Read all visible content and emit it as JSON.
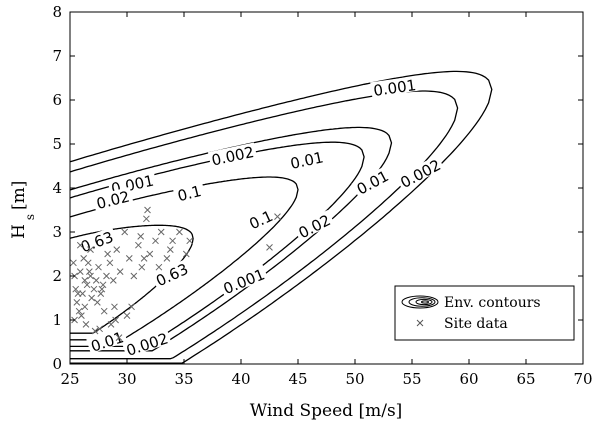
{
  "chart_data": {
    "type": "contour",
    "xlabel": "Wind Speed [m/s]",
    "ylabel_main": "H",
    "ylabel_sub": "s",
    "ylabel_unit": "[m]",
    "xlim": [
      25,
      70
    ],
    "ylim": [
      0,
      8
    ],
    "xticks": [
      "25",
      "30",
      "35",
      "40",
      "45",
      "50",
      "55",
      "60",
      "65",
      "70"
    ],
    "yticks": [
      "0",
      "1",
      "2",
      "3",
      "4",
      "5",
      "6",
      "7",
      "8"
    ],
    "grid": false,
    "legend": {
      "position": "bottom-right",
      "entries": [
        "Env. contours",
        "Site data"
      ]
    },
    "contours": [
      {
        "level": "0.63",
        "x_min": 24.5,
        "x_max": 35.8,
        "lower_min": 0.7,
        "upper_max": 3.3
      },
      {
        "level": "0.1",
        "x_min": 24,
        "x_max": 45,
        "lower_min": 0.55,
        "upper_max": 4.2
      },
      {
        "level": "0.02",
        "x_min": 23.5,
        "x_max": 50.8,
        "lower_min": 0.4,
        "upper_max": 5.0
      },
      {
        "level": "0.01",
        "x_min": 23.2,
        "x_max": 53.2,
        "lower_min": 0.3,
        "upper_max": 5.3
      },
      {
        "level": "0.002",
        "x_min": 23,
        "x_max": 59,
        "lower_min": 0.12,
        "upper_max": 6.0
      },
      {
        "level": "0.001",
        "x_min": 22.8,
        "x_max": 62,
        "lower_min": 0.02,
        "upper_max": 6.4
      }
    ],
    "contour_labels": [
      {
        "text": "0.001",
        "x": 53.5,
        "y": 6.25,
        "angle": -8
      },
      {
        "text": "0.002",
        "x": 39.3,
        "y": 4.7,
        "angle": -12
      },
      {
        "text": "0.01",
        "x": 45.8,
        "y": 4.6,
        "angle": -12
      },
      {
        "text": "0.001",
        "x": 30.5,
        "y": 4.05,
        "angle": -12
      },
      {
        "text": "0.02",
        "x": 28.8,
        "y": 3.7,
        "angle": -14
      },
      {
        "text": "0.1",
        "x": 35.5,
        "y": 3.85,
        "angle": -14
      },
      {
        "text": "0.63",
        "x": 27.4,
        "y": 2.75,
        "angle": -20
      },
      {
        "text": "0.1",
        "x": 41.8,
        "y": 3.25,
        "angle": -25
      },
      {
        "text": "0.02",
        "x": 46.5,
        "y": 3.1,
        "angle": -27
      },
      {
        "text": "0.01",
        "x": 51.6,
        "y": 4.1,
        "angle": -28
      },
      {
        "text": "0.002",
        "x": 55.8,
        "y": 4.3,
        "angle": -28
      },
      {
        "text": "0.63",
        "x": 34.0,
        "y": 2.0,
        "angle": -25
      },
      {
        "text": "0.001",
        "x": 40.3,
        "y": 1.85,
        "angle": -22
      },
      {
        "text": "0.002",
        "x": 31.8,
        "y": 0.42,
        "angle": -18
      },
      {
        "text": "0.01",
        "x": 28.3,
        "y": 0.48,
        "angle": -18
      }
    ],
    "site_data": {
      "x": [
        25.3,
        25.5,
        25.6,
        25.8,
        25.4,
        25.9,
        26.1,
        26.3,
        26.5,
        26.2,
        26.7,
        26.9,
        27.1,
        27.3,
        26.0,
        26.4,
        26.8,
        27.5,
        27.7,
        27.9,
        28.2,
        28.5,
        28.8,
        29.1,
        29.4,
        29.8,
        30.2,
        30.6,
        31.0,
        31.3,
        31.7,
        32.0,
        32.5,
        33.0,
        33.5,
        34.0,
        34.6,
        35.2,
        35.5,
        25.7,
        26.6,
        27.4,
        28.0,
        28.6,
        29.3,
        30.0,
        31.2,
        31.8,
        32.8,
        27.2,
        25.4,
        26.3,
        27.8,
        28.3,
        29.0,
        30.4,
        31.5,
        25.9,
        26.8,
        27.6,
        28.9,
        33.8,
        43.2,
        42.5
      ],
      "y": [
        2.3,
        1.7,
        1.4,
        1.2,
        1.0,
        2.1,
        1.6,
        1.3,
        1.8,
        2.4,
        2.1,
        1.5,
        1.7,
        1.9,
        1.1,
        0.9,
        2.6,
        2.2,
        1.6,
        1.8,
        2.0,
        2.3,
        1.9,
        2.6,
        2.1,
        3.0,
        2.4,
        2.0,
        2.7,
        2.2,
        3.3,
        2.5,
        2.8,
        3.0,
        2.4,
        2.8,
        3.0,
        2.5,
        2.8,
        1.6,
        2.3,
        1.4,
        1.2,
        0.9,
        0.6,
        1.1,
        2.9,
        3.5,
        2.2,
        0.75,
        2.0,
        1.9,
        1.7,
        2.5,
        1.0,
        1.3,
        2.4,
        2.7,
        2.0,
        0.8,
        1.3,
        2.6,
        3.35,
        2.65
      ]
    }
  }
}
